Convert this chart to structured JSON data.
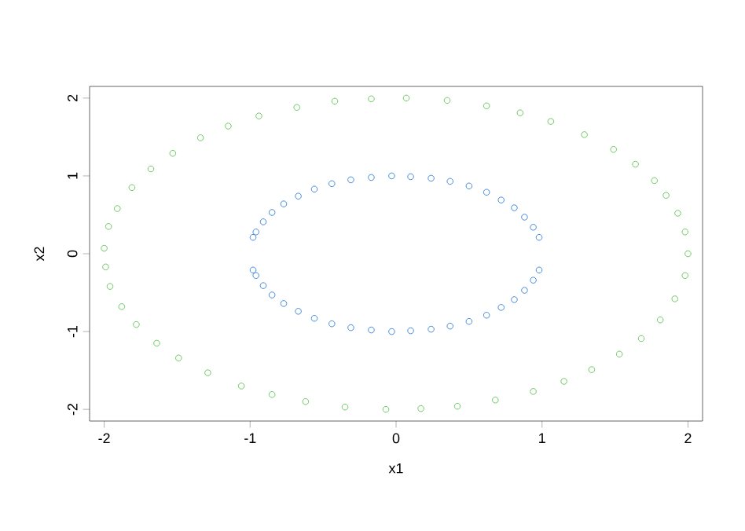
{
  "chart_data": {
    "type": "scatter",
    "xlabel": "x1",
    "ylabel": "x2",
    "xlim": [
      -2.1,
      2.1
    ],
    "ylim": [
      -2.15,
      2.15
    ],
    "xticks": [
      -2,
      -1,
      0,
      1,
      2
    ],
    "yticks": [
      -2,
      -1,
      0,
      1,
      2
    ],
    "marker": "circle",
    "series": [
      {
        "color": "#5dc44f",
        "x": [
          2.0,
          1.98,
          1.93,
          1.85,
          1.77,
          1.64,
          1.49,
          1.29,
          1.06,
          0.85,
          0.62,
          0.35,
          0.07,
          -0.17,
          -0.42,
          -0.68,
          -0.94,
          -1.15,
          -1.34,
          -1.53,
          -1.68,
          -1.81,
          -1.91,
          -1.97,
          -2.0,
          -1.99,
          -1.96,
          -1.88,
          -1.78,
          -1.64,
          -1.49,
          -1.29,
          -1.06,
          -0.85,
          -0.62,
          -0.35,
          -0.07,
          0.17,
          0.42,
          0.68,
          0.94,
          1.15,
          1.34,
          1.53,
          1.68,
          1.81,
          1.91,
          1.98
        ],
        "values": [
          0.0,
          0.28,
          0.52,
          0.75,
          0.94,
          1.15,
          1.34,
          1.53,
          1.7,
          1.81,
          1.9,
          1.97,
          2.0,
          1.99,
          1.96,
          1.88,
          1.77,
          1.64,
          1.49,
          1.29,
          1.09,
          0.85,
          0.58,
          0.35,
          0.07,
          -0.17,
          -0.42,
          -0.68,
          -0.91,
          -1.15,
          -1.34,
          -1.53,
          -1.7,
          -1.81,
          -1.9,
          -1.97,
          -2.0,
          -1.99,
          -1.96,
          -1.88,
          -1.77,
          -1.64,
          -1.49,
          -1.29,
          -1.09,
          -0.85,
          -0.58,
          -0.28
        ]
      },
      {
        "color": "#2f7ed8",
        "x": [
          0.98,
          0.94,
          0.88,
          0.81,
          0.72,
          0.62,
          0.5,
          0.37,
          0.24,
          0.1,
          -0.03,
          -0.17,
          -0.31,
          -0.44,
          -0.56,
          -0.67,
          -0.77,
          -0.85,
          -0.91,
          -0.96,
          -0.98,
          0.98,
          0.94,
          0.88,
          0.81,
          0.72,
          0.62,
          0.5,
          0.37,
          0.24,
          0.1,
          -0.03,
          -0.17,
          -0.31,
          -0.44,
          -0.56,
          -0.67,
          -0.77,
          -0.85,
          -0.91,
          -0.96,
          -0.98
        ],
        "values": [
          0.21,
          0.34,
          0.47,
          0.59,
          0.69,
          0.79,
          0.87,
          0.93,
          0.97,
          0.99,
          1.0,
          0.98,
          0.95,
          0.9,
          0.83,
          0.74,
          0.64,
          0.53,
          0.41,
          0.28,
          0.21,
          -0.21,
          -0.34,
          -0.47,
          -0.59,
          -0.69,
          -0.79,
          -0.87,
          -0.93,
          -0.97,
          -0.99,
          -1.0,
          -0.98,
          -0.95,
          -0.9,
          -0.83,
          -0.74,
          -0.64,
          -0.53,
          -0.41,
          -0.28,
          -0.21
        ]
      }
    ]
  }
}
